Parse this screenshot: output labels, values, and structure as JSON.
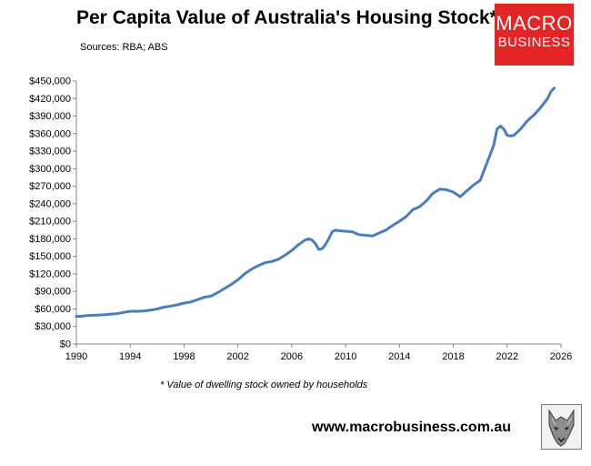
{
  "header": {
    "title": "Per Capita Value of Australia's Housing Stock*",
    "sources": "Sources: RBA; ABS"
  },
  "logo": {
    "line1": "MACRO",
    "line2": "BUSINESS",
    "background": "#e32526",
    "text_color": "#ffffff"
  },
  "footer": {
    "footnote": "* Value of dwelling stock owned by households",
    "website": "www.macrobusiness.com.au",
    "mascot_icon": "wolf-icon"
  },
  "chart_data": {
    "type": "line",
    "title": "Per Capita Value of Australia's Housing Stock*",
    "xlabel": "",
    "ylabel": "",
    "xlim": [
      1990,
      2026
    ],
    "ylim": [
      0,
      450000
    ],
    "x_ticks": [
      "1990",
      "1994",
      "1998",
      "2002",
      "2006",
      "2010",
      "2014",
      "2018",
      "2022",
      "2026"
    ],
    "y_ticks": [
      "$0",
      "$30,000",
      "$60,000",
      "$90,000",
      "$120,000",
      "$150,000",
      "$180,000",
      "$210,000",
      "$240,000",
      "$270,000",
      "$300,000",
      "$330,000",
      "$360,000",
      "$390,000",
      "$420,000",
      "$450,000"
    ],
    "grid": false,
    "legend": "none",
    "series": [
      {
        "color": "#4a7ebb",
        "x": [
          1990.0,
          1990.5,
          1991.0,
          1991.5,
          1992.0,
          1992.5,
          1993.0,
          1993.5,
          1994.0,
          1994.5,
          1995.0,
          1995.5,
          1996.0,
          1996.5,
          1997.0,
          1997.5,
          1998.0,
          1998.5,
          1999.0,
          1999.5,
          2000.0,
          2000.5,
          2001.0,
          2001.5,
          2002.0,
          2002.5,
          2003.0,
          2003.5,
          2004.0,
          2004.5,
          2005.0,
          2005.5,
          2006.0,
          2006.5,
          2007.0,
          2007.25,
          2007.5,
          2007.75,
          2008.0,
          2008.25,
          2008.5,
          2008.75,
          2009.0,
          2009.25,
          2009.5,
          2010.0,
          2010.5,
          2011.0,
          2011.5,
          2012.0,
          2012.5,
          2013.0,
          2013.5,
          2014.0,
          2014.5,
          2015.0,
          2015.5,
          2016.0,
          2016.5,
          2017.0,
          2017.5,
          2018.0,
          2018.5,
          2019.0,
          2019.5,
          2020.0,
          2020.5,
          2021.0,
          2021.25,
          2021.5,
          2021.75,
          2022.0,
          2022.25,
          2022.5,
          2023.0,
          2023.5,
          2024.0,
          2024.5,
          2025.0,
          2025.25,
          2025.5
        ],
        "values": [
          47000,
          48000,
          49000,
          49500,
          50000,
          51000,
          52000,
          54000,
          56000,
          56000,
          56500,
          58000,
          60000,
          63000,
          65000,
          67000,
          70000,
          72000,
          76000,
          80000,
          82000,
          88000,
          95000,
          102000,
          110000,
          120000,
          128000,
          134000,
          139000,
          141000,
          145000,
          152000,
          160000,
          170000,
          178000,
          180000,
          178000,
          172000,
          162000,
          163000,
          170000,
          180000,
          192000,
          195000,
          194000,
          193000,
          192000,
          187000,
          186000,
          185000,
          190000,
          195000,
          203000,
          210000,
          218000,
          230000,
          235000,
          245000,
          258000,
          265000,
          264000,
          260000,
          252000,
          262000,
          272000,
          280000,
          310000,
          340000,
          368000,
          373000,
          368000,
          357000,
          356000,
          357000,
          368000,
          382000,
          392000,
          405000,
          420000,
          432000,
          438000
        ]
      }
    ]
  }
}
